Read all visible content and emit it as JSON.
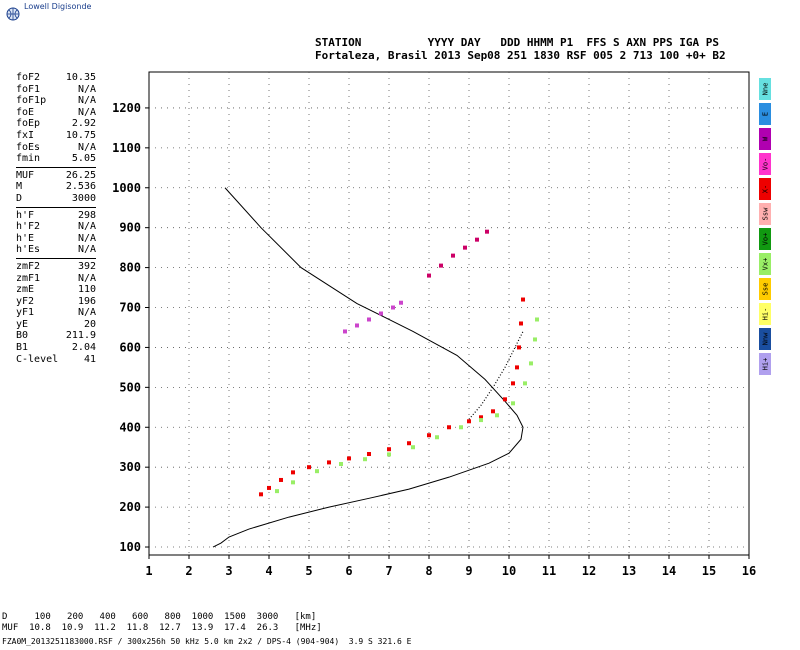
{
  "brand": {
    "name": "Lowell Digisonde"
  },
  "header": {
    "line1": "STATION          YYYY DAY   DDD HHMM P1  FFS S AXN PPS IGA PS",
    "line2": "Fortaleza, Brasil 2013 Sep08 251 1830 RSF 005 2 713 100 +0+ B2"
  },
  "parameters": {
    "group1": [
      {
        "name": "foF2",
        "value": "10.35"
      },
      {
        "name": "foF1",
        "value": "N/A"
      },
      {
        "name": "foF1p",
        "value": "N/A"
      },
      {
        "name": "foE",
        "value": "N/A"
      },
      {
        "name": "foEp",
        "value": "2.92"
      },
      {
        "name": "fxI",
        "value": "10.75"
      },
      {
        "name": "foEs",
        "value": "N/A"
      },
      {
        "name": "fmin",
        "value": "5.05"
      }
    ],
    "group2": [
      {
        "name": "MUF",
        "value": "26.25"
      },
      {
        "name": "M",
        "value": "2.536"
      },
      {
        "name": "D",
        "value": "3000"
      }
    ],
    "group3": [
      {
        "name": "h'F",
        "value": "298"
      },
      {
        "name": "h'F2",
        "value": "N/A"
      },
      {
        "name": "h'E",
        "value": "N/A"
      },
      {
        "name": "h'Es",
        "value": "N/A"
      }
    ],
    "group4": [
      {
        "name": "zmF2",
        "value": "392"
      },
      {
        "name": "zmF1",
        "value": "N/A"
      },
      {
        "name": "zmE",
        "value": "110"
      },
      {
        "name": "yF2",
        "value": "196"
      },
      {
        "name": "yF1",
        "value": "N/A"
      },
      {
        "name": "yE",
        "value": "20"
      },
      {
        "name": "B0",
        "value": "211.9"
      },
      {
        "name": "B1",
        "value": "2.04"
      },
      {
        "name": "C-level",
        "value": "41"
      }
    ]
  },
  "legend": [
    {
      "label": "Nne",
      "color": "#66e0e0"
    },
    {
      "label": "E",
      "color": "#2a8ee0"
    },
    {
      "label": "W",
      "color": "#b000b0"
    },
    {
      "label": "Vo-",
      "color": "#ff33cc"
    },
    {
      "label": "X-",
      "color": "#ee0000"
    },
    {
      "label": "Ssw",
      "color": "#ffb0b0"
    },
    {
      "label": "Vo+",
      "color": "#119911"
    },
    {
      "label": "Vx+",
      "color": "#99ee66"
    },
    {
      "label": "Sse",
      "color": "#ffcc00"
    },
    {
      "label": "Hi-",
      "color": "#ffff66"
    },
    {
      "label": "Nnw",
      "color": "#1a4ea0"
    },
    {
      "label": "Hi+",
      "color": "#b0a0ee"
    }
  ],
  "bottom": {
    "line1": "D     100   200   400   600   800  1000  1500  3000   [km]",
    "line2": "MUF  10.8  10.9  11.2  11.8  12.7  13.9  17.4  26.3   [MHz]",
    "line3": "FZA0M_2013251183000.RSF / 300x256h 50 kHz 5.0 km 2x2 / DPS-4 (904-904)  3.9 S 321.6 E"
  },
  "chart_data": {
    "type": "scatter",
    "title": "",
    "xlabel": "",
    "ylabel": "",
    "xlim": [
      1,
      16
    ],
    "ylim": [
      80,
      1290
    ],
    "grid": true,
    "xticks": [
      1,
      2,
      3,
      4,
      5,
      6,
      7,
      8,
      9,
      10,
      11,
      12,
      13,
      14,
      15,
      16
    ],
    "yticks": [
      100,
      200,
      300,
      400,
      500,
      600,
      700,
      800,
      900,
      1000,
      1100,
      1200
    ],
    "series": [
      {
        "name": "O trace (first hop)",
        "color": "#ee0000",
        "points": [
          [
            3.8,
            232
          ],
          [
            4.0,
            248
          ],
          [
            4.3,
            268
          ],
          [
            4.6,
            287
          ],
          [
            5.0,
            300
          ],
          [
            5.5,
            312
          ],
          [
            6.0,
            322
          ],
          [
            6.5,
            333
          ],
          [
            7.0,
            345
          ],
          [
            7.5,
            360
          ],
          [
            8.0,
            380
          ],
          [
            8.5,
            400
          ],
          [
            9.0,
            415
          ],
          [
            9.3,
            425
          ],
          [
            9.6,
            440
          ],
          [
            9.9,
            470
          ],
          [
            10.1,
            510
          ],
          [
            10.2,
            550
          ],
          [
            10.25,
            600
          ],
          [
            10.3,
            660
          ],
          [
            10.35,
            720
          ]
        ]
      },
      {
        "name": "X trace (first hop)",
        "color": "#99ee66",
        "points": [
          [
            4.2,
            240
          ],
          [
            4.6,
            262
          ],
          [
            5.2,
            290
          ],
          [
            5.8,
            308
          ],
          [
            6.4,
            320
          ],
          [
            7.0,
            332
          ],
          [
            7.6,
            350
          ],
          [
            8.2,
            375
          ],
          [
            8.8,
            400
          ],
          [
            9.3,
            418
          ],
          [
            9.7,
            430
          ],
          [
            10.1,
            460
          ],
          [
            10.4,
            510
          ],
          [
            10.55,
            560
          ],
          [
            10.65,
            620
          ],
          [
            10.7,
            670
          ]
        ]
      },
      {
        "name": "Second hop",
        "color": "#cc0066",
        "points": [
          [
            8.0,
            780
          ],
          [
            8.3,
            805
          ],
          [
            8.6,
            830
          ],
          [
            8.9,
            850
          ],
          [
            9.2,
            870
          ],
          [
            9.45,
            890
          ]
        ]
      },
      {
        "name": "Oblique echoes",
        "color": "#cc44cc",
        "points": [
          [
            5.9,
            640
          ],
          [
            6.2,
            655
          ],
          [
            6.5,
            670
          ],
          [
            6.8,
            685
          ],
          [
            7.1,
            700
          ],
          [
            7.3,
            712
          ]
        ]
      }
    ],
    "profile": {
      "name": "Electron density profile",
      "points": [
        [
          2.6,
          100
        ],
        [
          2.8,
          110
        ],
        [
          3.0,
          125
        ],
        [
          3.5,
          145
        ],
        [
          4.5,
          175
        ],
        [
          5.5,
          200
        ],
        [
          6.5,
          222
        ],
        [
          7.5,
          245
        ],
        [
          8.5,
          275
        ],
        [
          9.5,
          310
        ],
        [
          10.0,
          335
        ],
        [
          10.3,
          370
        ],
        [
          10.35,
          400
        ],
        [
          10.2,
          430
        ],
        [
          9.9,
          465
        ],
        [
          9.4,
          520
        ],
        [
          8.7,
          580
        ],
        [
          7.6,
          640
        ],
        [
          6.2,
          710
        ],
        [
          4.8,
          800
        ],
        [
          3.8,
          900
        ],
        [
          2.9,
          1000
        ]
      ]
    },
    "profile_extrapolation": {
      "name": "Profile extrapolation",
      "points": [
        [
          9.0,
          420
        ],
        [
          9.3,
          455
        ],
        [
          9.6,
          500
        ],
        [
          9.9,
          550
        ],
        [
          10.1,
          590
        ],
        [
          10.35,
          640
        ]
      ]
    }
  }
}
